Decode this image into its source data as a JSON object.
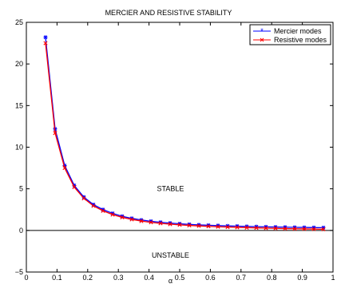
{
  "chart_data": {
    "type": "line",
    "title": "MERCIER AND RESISTIVE STABILITY",
    "xlabel": "α",
    "ylabel": "",
    "xlim": [
      0,
      1
    ],
    "ylim": [
      -5,
      25
    ],
    "grid": false,
    "legend_position": "top-right",
    "x_ticks": [
      "0",
      "0.1",
      "0.2",
      "0.3",
      "0.4",
      "0.5",
      "0.6",
      "0.7",
      "0.8",
      "0.9",
      "1"
    ],
    "y_ticks": [
      "−5",
      "0",
      "5",
      "10",
      "15",
      "20",
      "25"
    ],
    "annotations": [
      {
        "text": "STABLE",
        "x": 0.47,
        "y": 5.0
      },
      {
        "text": "UNSTABLE",
        "x": 0.47,
        "y": -3.0
      }
    ],
    "x": [
      0.0625,
      0.09375,
      0.125,
      0.15625,
      0.1875,
      0.21875,
      0.25,
      0.28125,
      0.3125,
      0.34375,
      0.375,
      0.40625,
      0.4375,
      0.46875,
      0.5,
      0.53125,
      0.5625,
      0.59375,
      0.625,
      0.65625,
      0.6875,
      0.71875,
      0.75,
      0.78125,
      0.8125,
      0.84375,
      0.875,
      0.90625,
      0.9375,
      0.96875
    ],
    "series": [
      {
        "name": "Mercier modes",
        "color": "#0000ff",
        "marker": "star",
        "values": [
          23.2,
          12.2,
          7.8,
          5.4,
          4.0,
          3.1,
          2.5,
          2.05,
          1.7,
          1.45,
          1.25,
          1.1,
          0.98,
          0.88,
          0.8,
          0.73,
          0.67,
          0.62,
          0.58,
          0.54,
          0.51,
          0.48,
          0.45,
          0.43,
          0.41,
          0.39,
          0.37,
          0.36,
          0.34,
          0.33
        ]
      },
      {
        "name": "Resistive modes",
        "color": "#ff0000",
        "marker": "x",
        "values": [
          22.5,
          11.7,
          7.5,
          5.2,
          3.85,
          2.95,
          2.35,
          1.9,
          1.57,
          1.32,
          1.12,
          0.97,
          0.85,
          0.75,
          0.67,
          0.6,
          0.54,
          0.49,
          0.44,
          0.4,
          0.36,
          0.33,
          0.3,
          0.27,
          0.25,
          0.22,
          0.2,
          0.18,
          0.16,
          0.14
        ]
      }
    ]
  }
}
